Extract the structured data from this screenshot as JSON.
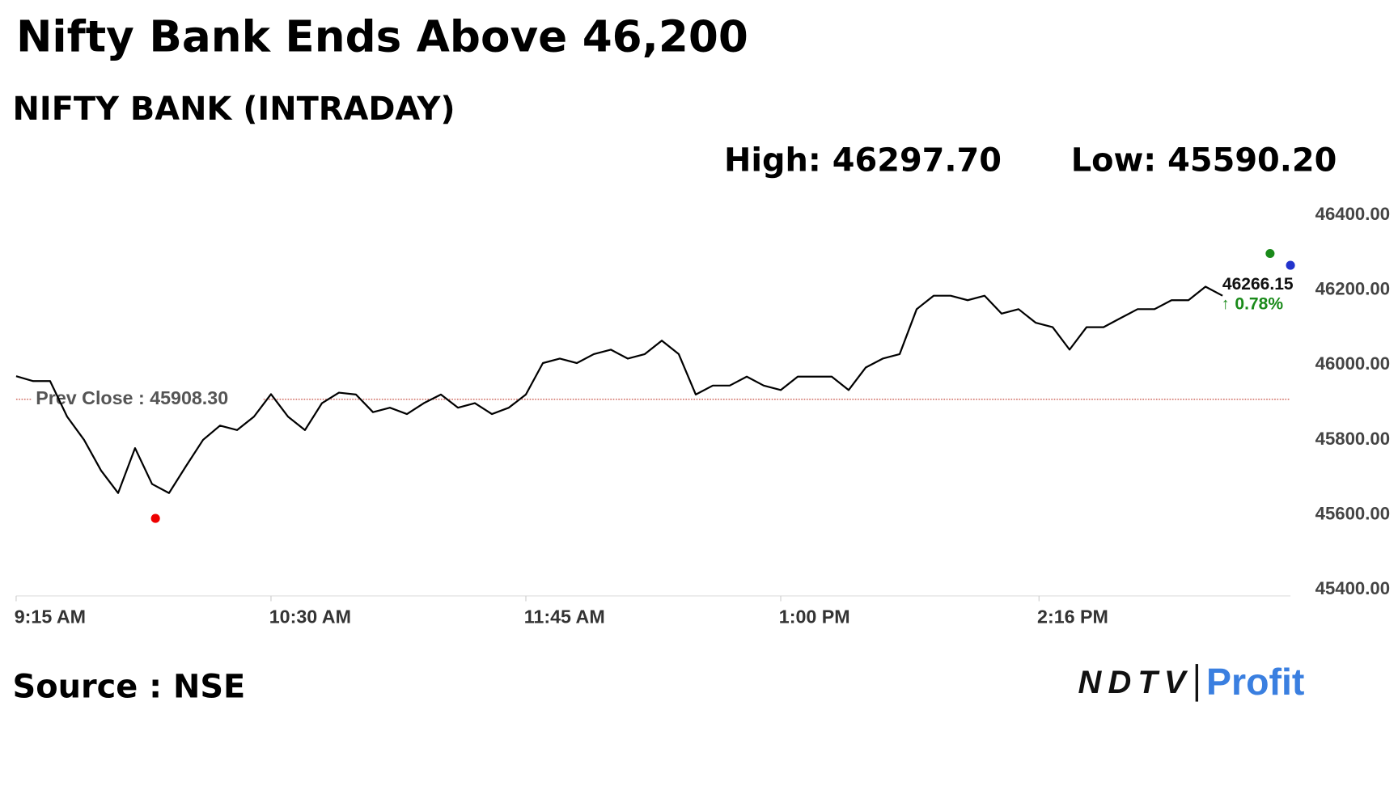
{
  "chart_data": {
    "type": "line",
    "title": "Nifty Bank Ends Above 46,200",
    "subtitle": "NIFTY BANK (INTRADAY)",
    "high": {
      "value": 46297.7,
      "label": "High: 46297.70",
      "x": "3:24 PM"
    },
    "low": {
      "value": 45590.2,
      "label": "Low: 45590.20",
      "x": "9:56 AM"
    },
    "prev_close": {
      "value": 45908.3,
      "label": "Prev Close : 45908.30"
    },
    "last": {
      "value": 46266.15,
      "label": "46266.15",
      "x": "3:30 PM"
    },
    "change_label": "0.78%",
    "source": "Source : NSE",
    "logo": {
      "left": "NDTV",
      "right": "Profit"
    },
    "x": [
      "9:15 AM",
      "9:20 AM",
      "9:25 AM",
      "9:30 AM",
      "9:35 AM",
      "9:40 AM",
      "9:45 AM",
      "9:50 AM",
      "9:55 AM",
      "10:00 AM",
      "10:05 AM",
      "10:10 AM",
      "10:15 AM",
      "10:20 AM",
      "10:25 AM",
      "10:30 AM",
      "10:35 AM",
      "10:40 AM",
      "10:45 AM",
      "10:50 AM",
      "10:55 AM",
      "11:00 AM",
      "11:05 AM",
      "11:10 AM",
      "11:15 AM",
      "11:20 AM",
      "11:25 AM",
      "11:30 AM",
      "11:35 AM",
      "11:40 AM",
      "11:45 AM",
      "11:50 AM",
      "11:55 AM",
      "12:00 PM",
      "12:05 PM",
      "12:10 PM",
      "12:15 PM",
      "12:20 PM",
      "12:25 PM",
      "12:30 PM",
      "12:35 PM",
      "12:40 PM",
      "12:45 PM",
      "12:50 PM",
      "12:55 PM",
      "1:00 PM",
      "1:05 PM",
      "1:10 PM",
      "1:15 PM",
      "1:20 PM",
      "1:25 PM",
      "1:30 PM",
      "1:35 PM",
      "1:40 PM",
      "1:45 PM",
      "1:50 PM",
      "1:55 PM",
      "2:00 PM",
      "2:05 PM",
      "2:10 PM",
      "2:15 PM",
      "2:20 PM",
      "2:25 PM",
      "2:30 PM",
      "2:35 PM",
      "2:40 PM",
      "2:45 PM",
      "2:50 PM",
      "2:55 PM",
      "3:00 PM",
      "3:05 PM",
      "3:10 PM"
    ],
    "series": [
      {
        "name": "NIFTY BANK",
        "color": "#000000",
        "values": [
          45970,
          45957,
          45957,
          45862,
          45800,
          45718,
          45658,
          45778,
          45682,
          45658,
          45730,
          45800,
          45838,
          45826,
          45862,
          45922,
          45862,
          45826,
          45898,
          45926,
          45921,
          45874,
          45886,
          45869,
          45898,
          45921,
          45886,
          45898,
          45869,
          45886,
          45921,
          46005,
          46017,
          46005,
          46029,
          46041,
          46017,
          46029,
          46065,
          46029,
          45921,
          45945,
          45945,
          45969,
          45945,
          45933,
          45969,
          45969,
          45969,
          45933,
          45993,
          46017,
          46029,
          46149,
          46185,
          46185,
          46173,
          46185,
          46137,
          46149,
          46113,
          46101,
          46041,
          46101,
          46101,
          46125,
          46149,
          46149,
          46173,
          46173,
          46209,
          46185
        ]
      }
    ],
    "xlim": [
      "9:15 AM",
      "3:30 PM"
    ],
    "xticks": [
      "9:15 AM",
      "10:30 AM",
      "11:45 AM",
      "1:00 PM",
      "2:16 PM"
    ],
    "ylim": [
      45400,
      46400
    ],
    "yticks": [
      {
        "value": 45400,
        "label": "45400.00"
      },
      {
        "value": 45600,
        "label": "45600.00"
      },
      {
        "value": 45800,
        "label": "45800.00"
      },
      {
        "value": 46000,
        "label": "46000.00"
      },
      {
        "value": 46200,
        "label": "46200.00"
      },
      {
        "value": 46400,
        "label": "46400.00"
      }
    ],
    "grid": false
  }
}
